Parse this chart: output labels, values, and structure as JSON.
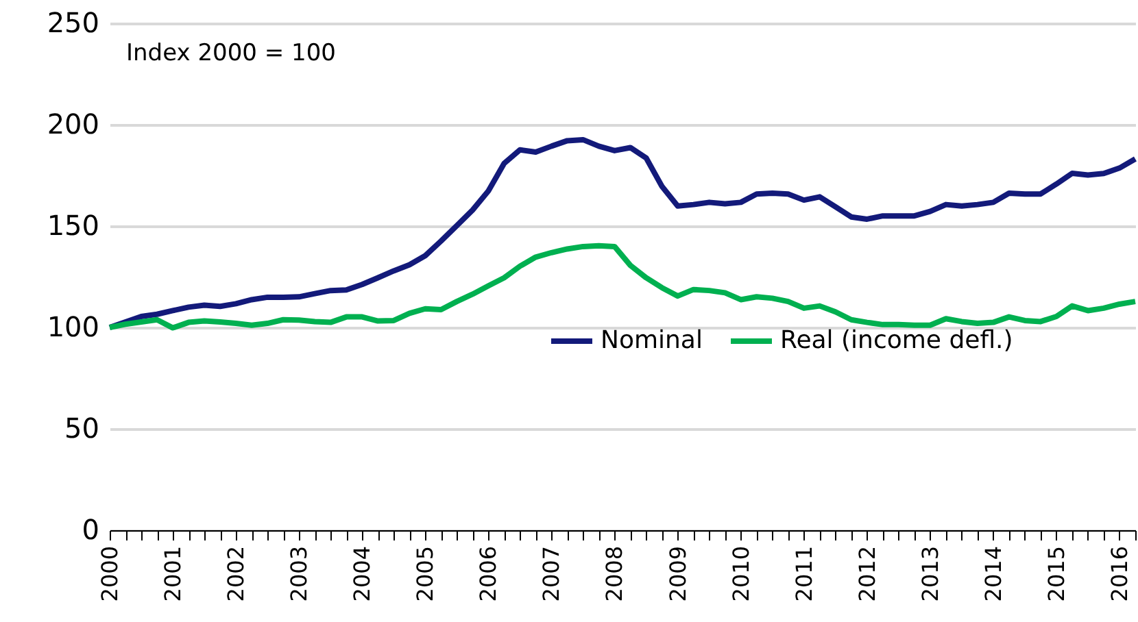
{
  "chart_data": {
    "type": "line",
    "annotations": [
      "Index 2000 = 100"
    ],
    "x": [
      2000,
      2000.25,
      2000.5,
      2000.75,
      2001,
      2001.25,
      2001.5,
      2001.75,
      2002,
      2002.25,
      2002.5,
      2002.75,
      2003,
      2003.25,
      2003.5,
      2003.75,
      2004,
      2004.25,
      2004.5,
      2004.75,
      2005,
      2005.25,
      2005.5,
      2005.75,
      2006,
      2006.25,
      2006.5,
      2006.75,
      2007,
      2007.25,
      2007.5,
      2007.75,
      2008,
      2008.25,
      2008.5,
      2008.75,
      2009,
      2009.25,
      2009.5,
      2009.75,
      2010,
      2010.25,
      2010.5,
      2010.75,
      2011,
      2011.25,
      2011.5,
      2011.75,
      2012,
      2012.25,
      2012.5,
      2012.75,
      2013,
      2013.25,
      2013.5,
      2013.75,
      2014,
      2014.25,
      2014.5,
      2014.75,
      2015,
      2015.25,
      2015.5,
      2015.75,
      2016,
      2016.25
    ],
    "series": [
      {
        "name": "Nominal",
        "color": "#131a7a",
        "values": [
          100,
          102.7,
          105.4,
          106.5,
          108.3,
          110,
          111,
          110.4,
          111.7,
          113.7,
          114.9,
          114.9,
          115.1,
          116.7,
          118.2,
          118.5,
          121.2,
          124.5,
          127.9,
          130.9,
          135.4,
          142.6,
          150.2,
          157.9,
          167.3,
          180.9,
          187.6,
          186.5,
          189.4,
          192.1,
          192.6,
          189.4,
          187.2,
          188.7,
          183.6,
          169.6,
          159.9,
          160.6,
          161.7,
          161,
          161.7,
          165.8,
          166.2,
          165.8,
          162.8,
          164.4,
          159.5,
          154.5,
          153.4,
          155,
          155,
          155,
          157.2,
          160.6,
          159.9,
          160.6,
          161.7,
          166.2,
          165.8,
          165.8,
          170.7,
          176,
          175.2,
          175.9,
          178.6,
          183.1
        ]
      },
      {
        "name": "Real (income defl.)",
        "color": "#00b050",
        "values": [
          100,
          101.6,
          102.7,
          103.8,
          99.8,
          102.5,
          103.2,
          102.7,
          102,
          101.1,
          102,
          103.8,
          103.6,
          102.9,
          102.5,
          105.2,
          105.2,
          103.2,
          103.4,
          107,
          109.2,
          108.8,
          112.8,
          116.4,
          120.5,
          124.5,
          130.2,
          134.7,
          136.9,
          138.7,
          139.9,
          140.3,
          139.9,
          130.6,
          124.5,
          119.6,
          115.5,
          118.7,
          118.2,
          117.1,
          113.7,
          115.1,
          114.4,
          112.8,
          109.5,
          110.6,
          107.7,
          103.8,
          102.5,
          101.4,
          101.4,
          101.1,
          101.1,
          104.3,
          102.9,
          102,
          102.5,
          105.2,
          103.4,
          102.9,
          105.4,
          110.6,
          108.3,
          109.5,
          111.5,
          112.8
        ]
      }
    ],
    "xlim": [
      2000,
      2016.25
    ],
    "xticks": [
      2000,
      {
        "value": 2000.25,
        "label": null
      },
      {
        "value": 2000.5,
        "label": null
      },
      {
        "value": 2000.75,
        "label": null
      },
      2001,
      {
        "value": 2001.25,
        "label": null
      },
      {
        "value": 2001.5,
        "label": null
      },
      {
        "value": 2001.75,
        "label": null
      },
      2002,
      {
        "value": 2002.25,
        "label": null
      },
      {
        "value": 2002.5,
        "label": null
      },
      {
        "value": 2002.75,
        "label": null
      },
      2003,
      {
        "value": 2003.25,
        "label": null
      },
      {
        "value": 2003.5,
        "label": null
      },
      {
        "value": 2003.75,
        "label": null
      },
      2004,
      {
        "value": 2004.25,
        "label": null
      },
      {
        "value": 2004.5,
        "label": null
      },
      {
        "value": 2004.75,
        "label": null
      },
      2005,
      {
        "value": 2005.25,
        "label": null
      },
      {
        "value": 2005.5,
        "label": null
      },
      {
        "value": 2005.75,
        "label": null
      },
      2006,
      {
        "value": 2006.25,
        "label": null
      },
      {
        "value": 2006.5,
        "label": null
      },
      {
        "value": 2006.75,
        "label": null
      },
      2007,
      {
        "value": 2007.25,
        "label": null
      },
      {
        "value": 2007.5,
        "label": null
      },
      {
        "value": 2007.75,
        "label": null
      },
      2008,
      {
        "value": 2008.25,
        "label": null
      },
      {
        "value": 2008.5,
        "label": null
      },
      {
        "value": 2008.75,
        "label": null
      },
      2009,
      {
        "value": 2009.25,
        "label": null
      },
      {
        "value": 2009.5,
        "label": null
      },
      {
        "value": 2009.75,
        "label": null
      },
      2010,
      {
        "value": 2010.25,
        "label": null
      },
      {
        "value": 2010.5,
        "label": null
      },
      {
        "value": 2010.75,
        "label": null
      },
      2011,
      {
        "value": 2011.25,
        "label": null
      },
      {
        "value": 2011.5,
        "label": null
      },
      {
        "value": 2011.75,
        "label": null
      },
      2012,
      {
        "value": 2012.25,
        "label": null
      },
      {
        "value": 2012.5,
        "label": null
      },
      {
        "value": 2012.75,
        "label": null
      },
      2013,
      {
        "value": 2013.25,
        "label": null
      },
      {
        "value": 2013.5,
        "label": null
      },
      {
        "value": 2013.75,
        "label": null
      },
      2014,
      {
        "value": 2014.25,
        "label": null
      },
      {
        "value": 2014.5,
        "label": null
      },
      {
        "value": 2014.75,
        "label": null
      },
      2015,
      {
        "value": 2015.25,
        "label": null
      },
      {
        "value": 2015.5,
        "label": null
      },
      {
        "value": 2015.75,
        "label": null
      },
      2016,
      {
        "value": 2016.25,
        "label": null
      }
    ],
    "ylim": [
      0,
      250
    ],
    "yticks": [
      0,
      50,
      100,
      150,
      200,
      250
    ],
    "grid": "y",
    "legend": "right",
    "marker": "none",
    "line_style": "solid"
  }
}
